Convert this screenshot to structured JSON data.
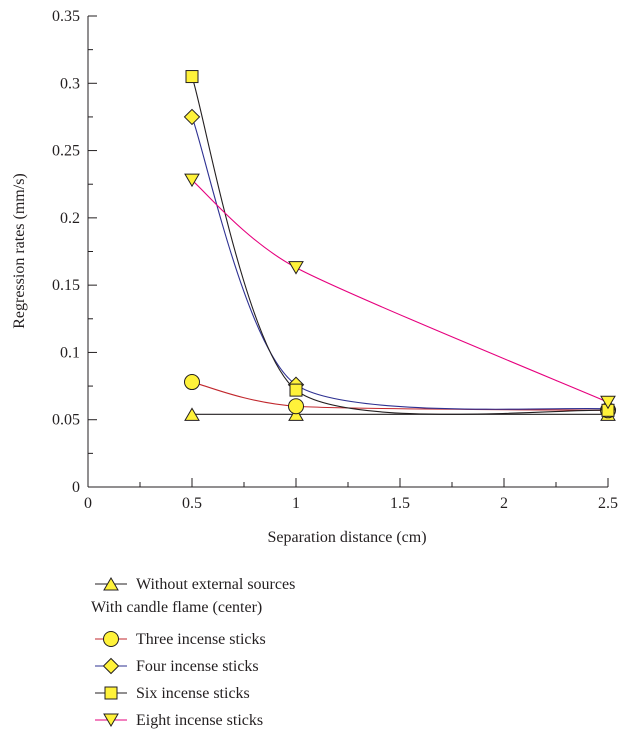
{
  "chart_data": {
    "type": "line",
    "title": "",
    "xlabel": "Separation distance (cm)",
    "ylabel": "Regression rates (mm/s)",
    "xlim": [
      0,
      2.5
    ],
    "ylim": [
      0,
      0.35
    ],
    "x_ticks": [
      "0",
      "0.5",
      "1",
      "1.5",
      "2",
      "2.5"
    ],
    "y_ticks": [
      "0",
      "0.05",
      "0.1",
      "0.15",
      "0.2",
      "0.25",
      "0.3",
      "0.35"
    ],
    "grid": false,
    "legend_position": "bottom",
    "legend_group_label": "With candle flame (center)",
    "series": [
      {
        "name": "Without external sources",
        "marker": "triangle-up",
        "line_color": "#231f20",
        "marker_fill": "#fff23a",
        "x": [
          0.5,
          1,
          2.5
        ],
        "y": [
          0.054,
          0.054,
          0.054
        ]
      },
      {
        "name": "Three incense sticks",
        "marker": "circle",
        "line_color": "#c1272d",
        "marker_fill": "#fff23a",
        "x": [
          0.5,
          1,
          2.5
        ],
        "y": [
          0.078,
          0.06,
          0.057
        ]
      },
      {
        "name": "Four incense sticks",
        "marker": "diamond",
        "line_color": "#2e3192",
        "marker_fill": "#fff23a",
        "x": [
          0.5,
          1,
          2.5
        ],
        "y": [
          0.275,
          0.076,
          0.058
        ]
      },
      {
        "name": "Six incense sticks",
        "marker": "square",
        "line_color": "#231f20",
        "marker_fill": "#fff23a",
        "x": [
          0.5,
          1,
          2.5
        ],
        "y": [
          0.305,
          0.072,
          0.057
        ]
      },
      {
        "name": "Eight incense sticks",
        "marker": "triangle-down",
        "line_color": "#e6007e",
        "marker_fill": "#fff23a",
        "x": [
          0.5,
          1,
          2.5
        ],
        "y": [
          0.228,
          0.163,
          0.063
        ]
      }
    ]
  }
}
